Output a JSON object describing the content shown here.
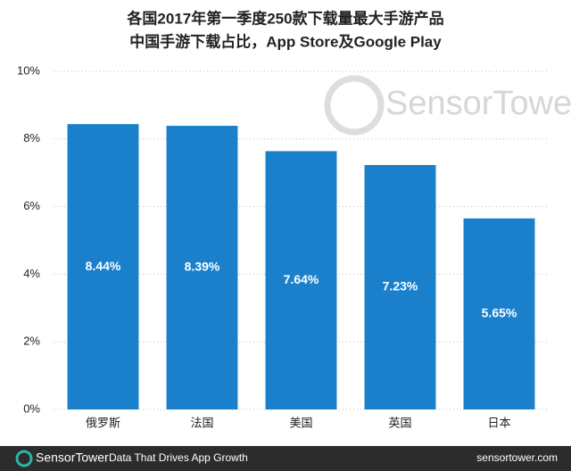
{
  "chart_data": {
    "type": "bar",
    "title": "各国2017年第一季度250款下载量最大手游产品",
    "subtitle": "中国手游下载占比，App Store及Google Play",
    "categories": [
      "俄罗斯",
      "法国",
      "美国",
      "英国",
      "日本"
    ],
    "values": [
      8.44,
      8.39,
      7.64,
      7.23,
      5.65
    ],
    "value_labels": [
      "8.44%",
      "8.39%",
      "7.64%",
      "7.23%",
      "5.65%"
    ],
    "color": "#1a80cb",
    "ylim": [
      0,
      10
    ],
    "yticks": [
      {
        "value": 0,
        "label": "0%"
      },
      {
        "value": 2,
        "label": "2%"
      },
      {
        "value": 4,
        "label": "4%"
      },
      {
        "value": 6,
        "label": "6%"
      },
      {
        "value": 8,
        "label": "8%"
      },
      {
        "value": 10,
        "label": "10%"
      }
    ],
    "grid": true,
    "watermark": "SensorTower"
  },
  "footer": {
    "brand": "SensorTower",
    "tagline": "Data That Drives App Growth",
    "url": "sensortower.com"
  }
}
